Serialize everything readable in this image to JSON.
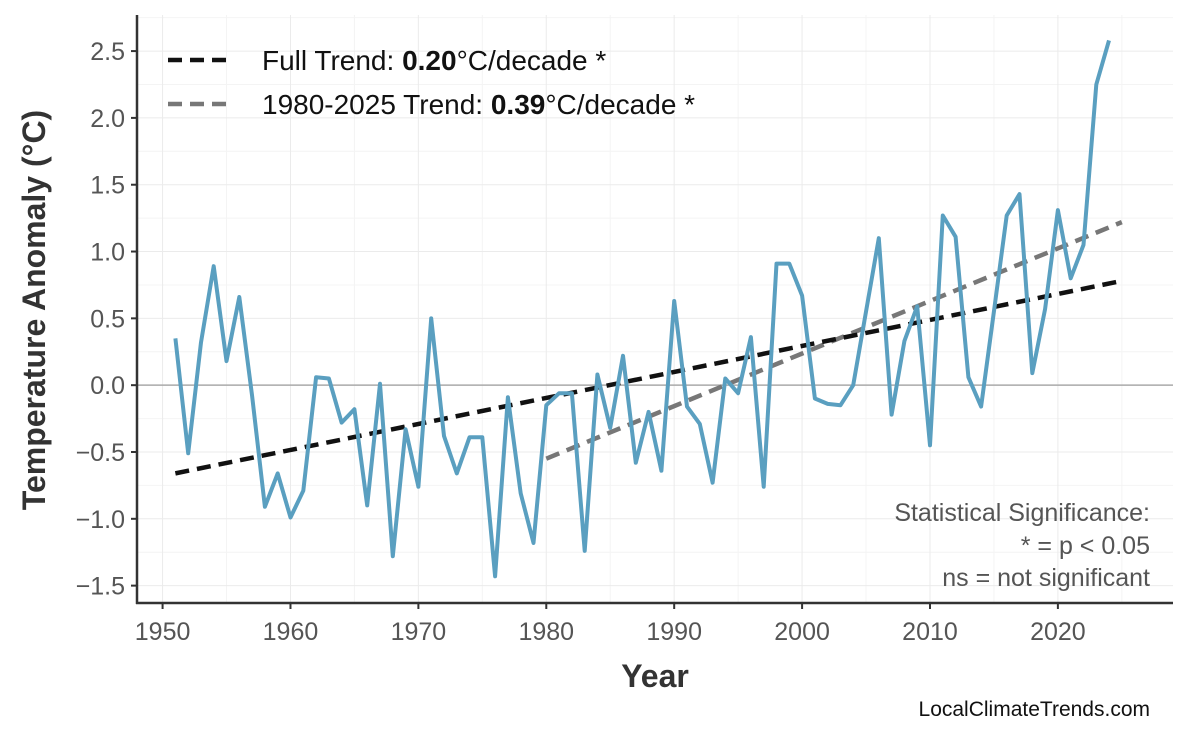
{
  "chart_data": {
    "type": "line",
    "xlabel": "Year",
    "ylabel": "Temperature Anomaly (°C)",
    "xlim": [
      1948,
      2029
    ],
    "ylim": [
      -1.63,
      2.77
    ],
    "x_ticks": [
      1950,
      1960,
      1970,
      1980,
      1990,
      2000,
      2010,
      2020
    ],
    "y_ticks": [
      -1.5,
      -1.0,
      -0.5,
      0.0,
      0.5,
      1.0,
      1.5,
      2.0,
      2.5
    ],
    "y_tick_labels": [
      "−1.5",
      "−1.0",
      "−0.5",
      "0.0",
      "0.5",
      "1.0",
      "1.5",
      "2.0",
      "2.5"
    ],
    "grid": true,
    "zero_line": true,
    "legend_position": "top-left",
    "colors": {
      "series": "#5a9fc0",
      "full_trend": "#111111",
      "recent_trend": "#777777",
      "axis": "#333333",
      "grid": "#ebebeb",
      "zero": "#aaaaaa"
    },
    "series": {
      "x": [
        1951,
        1952,
        1953,
        1954,
        1955,
        1956,
        1957,
        1958,
        1959,
        1960,
        1961,
        1962,
        1963,
        1964,
        1965,
        1966,
        1967,
        1968,
        1969,
        1970,
        1971,
        1972,
        1973,
        1974,
        1975,
        1976,
        1977,
        1978,
        1979,
        1980,
        1981,
        1982,
        1983,
        1984,
        1985,
        1986,
        1987,
        1988,
        1989,
        1990,
        1991,
        1992,
        1993,
        1994,
        1995,
        1996,
        1997,
        1998,
        1999,
        2000,
        2001,
        2002,
        2003,
        2004,
        2005,
        2006,
        2007,
        2008,
        2009,
        2010,
        2011,
        2012,
        2013,
        2014,
        2015,
        2016,
        2017,
        2018,
        2019,
        2020,
        2021,
        2022,
        2023,
        2024
      ],
      "y": [
        0.35,
        -0.51,
        0.32,
        0.89,
        0.18,
        0.66,
        -0.08,
        -0.91,
        -0.66,
        -0.99,
        -0.79,
        0.06,
        0.05,
        -0.28,
        -0.18,
        -0.9,
        0.01,
        -1.28,
        -0.33,
        -0.76,
        0.5,
        -0.38,
        -0.66,
        -0.39,
        -0.39,
        -1.43,
        -0.09,
        -0.81,
        -1.18,
        -0.15,
        -0.06,
        -0.06,
        -1.24,
        0.08,
        -0.32,
        0.22,
        -0.58,
        -0.2,
        -0.64,
        0.63,
        -0.16,
        -0.29,
        -0.73,
        0.05,
        -0.06,
        0.36,
        -0.76,
        0.91,
        0.91,
        0.67,
        -0.1,
        -0.14,
        -0.15,
        0.0,
        0.55,
        1.1,
        -0.22,
        0.33,
        0.59,
        -0.45,
        1.27,
        1.11,
        0.06,
        -0.16,
        0.55,
        1.27,
        1.43,
        0.09,
        0.57,
        1.31,
        0.8,
        1.05,
        2.25,
        2.58
      ]
    },
    "trends": [
      {
        "name": "Full Trend",
        "prefix": "Full Trend: ",
        "value": "0.20",
        "unit": "°C/decade *",
        "x": [
          1951,
          2025
        ],
        "y": [
          -0.66,
          0.78
        ]
      },
      {
        "name": "1980-2025 Trend",
        "prefix": "1980-2025 Trend: ",
        "value": "0.39",
        "unit": "°C/decade *",
        "x": [
          1980,
          2025
        ],
        "y": [
          -0.55,
          1.22
        ]
      }
    ],
    "annotation": [
      "Statistical Significance:",
      "* = p < 0.05",
      "ns = not significant"
    ]
  },
  "credit": "LocalClimateTrends.com"
}
